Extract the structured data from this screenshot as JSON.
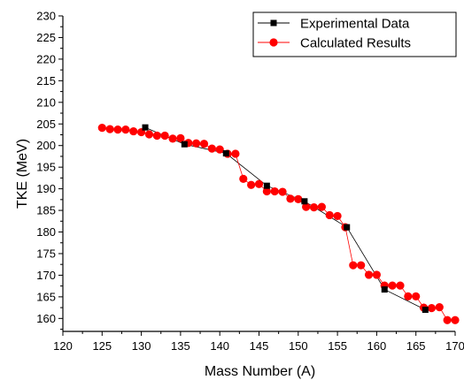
{
  "chart_data": {
    "type": "line",
    "title": "",
    "xlabel": "Mass Number (A)",
    "ylabel": "TKE (MeV)",
    "xlim": [
      120,
      170
    ],
    "ylim": [
      157,
      230
    ],
    "xticks": [
      120,
      125,
      130,
      135,
      140,
      145,
      150,
      155,
      160,
      165,
      170
    ],
    "yticks": [
      160,
      165,
      170,
      175,
      180,
      185,
      190,
      195,
      200,
      205,
      210,
      215,
      220,
      225,
      230
    ],
    "legend": "top-right",
    "grid": false,
    "series": [
      {
        "name": "Experimental Data",
        "color": "#000000",
        "line_color": "#000000",
        "marker": "square",
        "x": [
          130.5,
          135.5,
          140.8,
          146,
          150.8,
          156.2,
          161,
          166.2
        ],
        "y": [
          204.2,
          200.3,
          198.2,
          190.7,
          187.1,
          181.1,
          166.7,
          162
        ]
      },
      {
        "name": "Calculated Results",
        "color": "#ff0000",
        "line_color": "#ff0000",
        "marker": "circle",
        "x": [
          125,
          126,
          127,
          128,
          129,
          130,
          131,
          132,
          133,
          134,
          135,
          136,
          137,
          138,
          139,
          140,
          141,
          142,
          143,
          144,
          145,
          146,
          147,
          148,
          149,
          150,
          151,
          152,
          153,
          154,
          155,
          156,
          157,
          158,
          159,
          160,
          161,
          162,
          163,
          164,
          165,
          166,
          167,
          168,
          169,
          170
        ],
        "y": [
          204.1,
          203.8,
          203.7,
          203.7,
          203.3,
          203.1,
          202.6,
          202.3,
          202.3,
          201.6,
          201.7,
          200.6,
          200.5,
          200.4,
          199.3,
          199.1,
          198.1,
          198.1,
          192.3,
          190.9,
          191.1,
          189.4,
          189.4,
          189.3,
          187.7,
          187.6,
          185.8,
          185.7,
          185.8,
          183.9,
          183.7,
          181.1,
          172.3,
          172.3,
          170.1,
          170.1,
          167.6,
          167.6,
          167.6,
          165.1,
          165.1,
          162.5,
          162.4,
          162.6,
          159.6,
          159.6
        ]
      }
    ]
  }
}
